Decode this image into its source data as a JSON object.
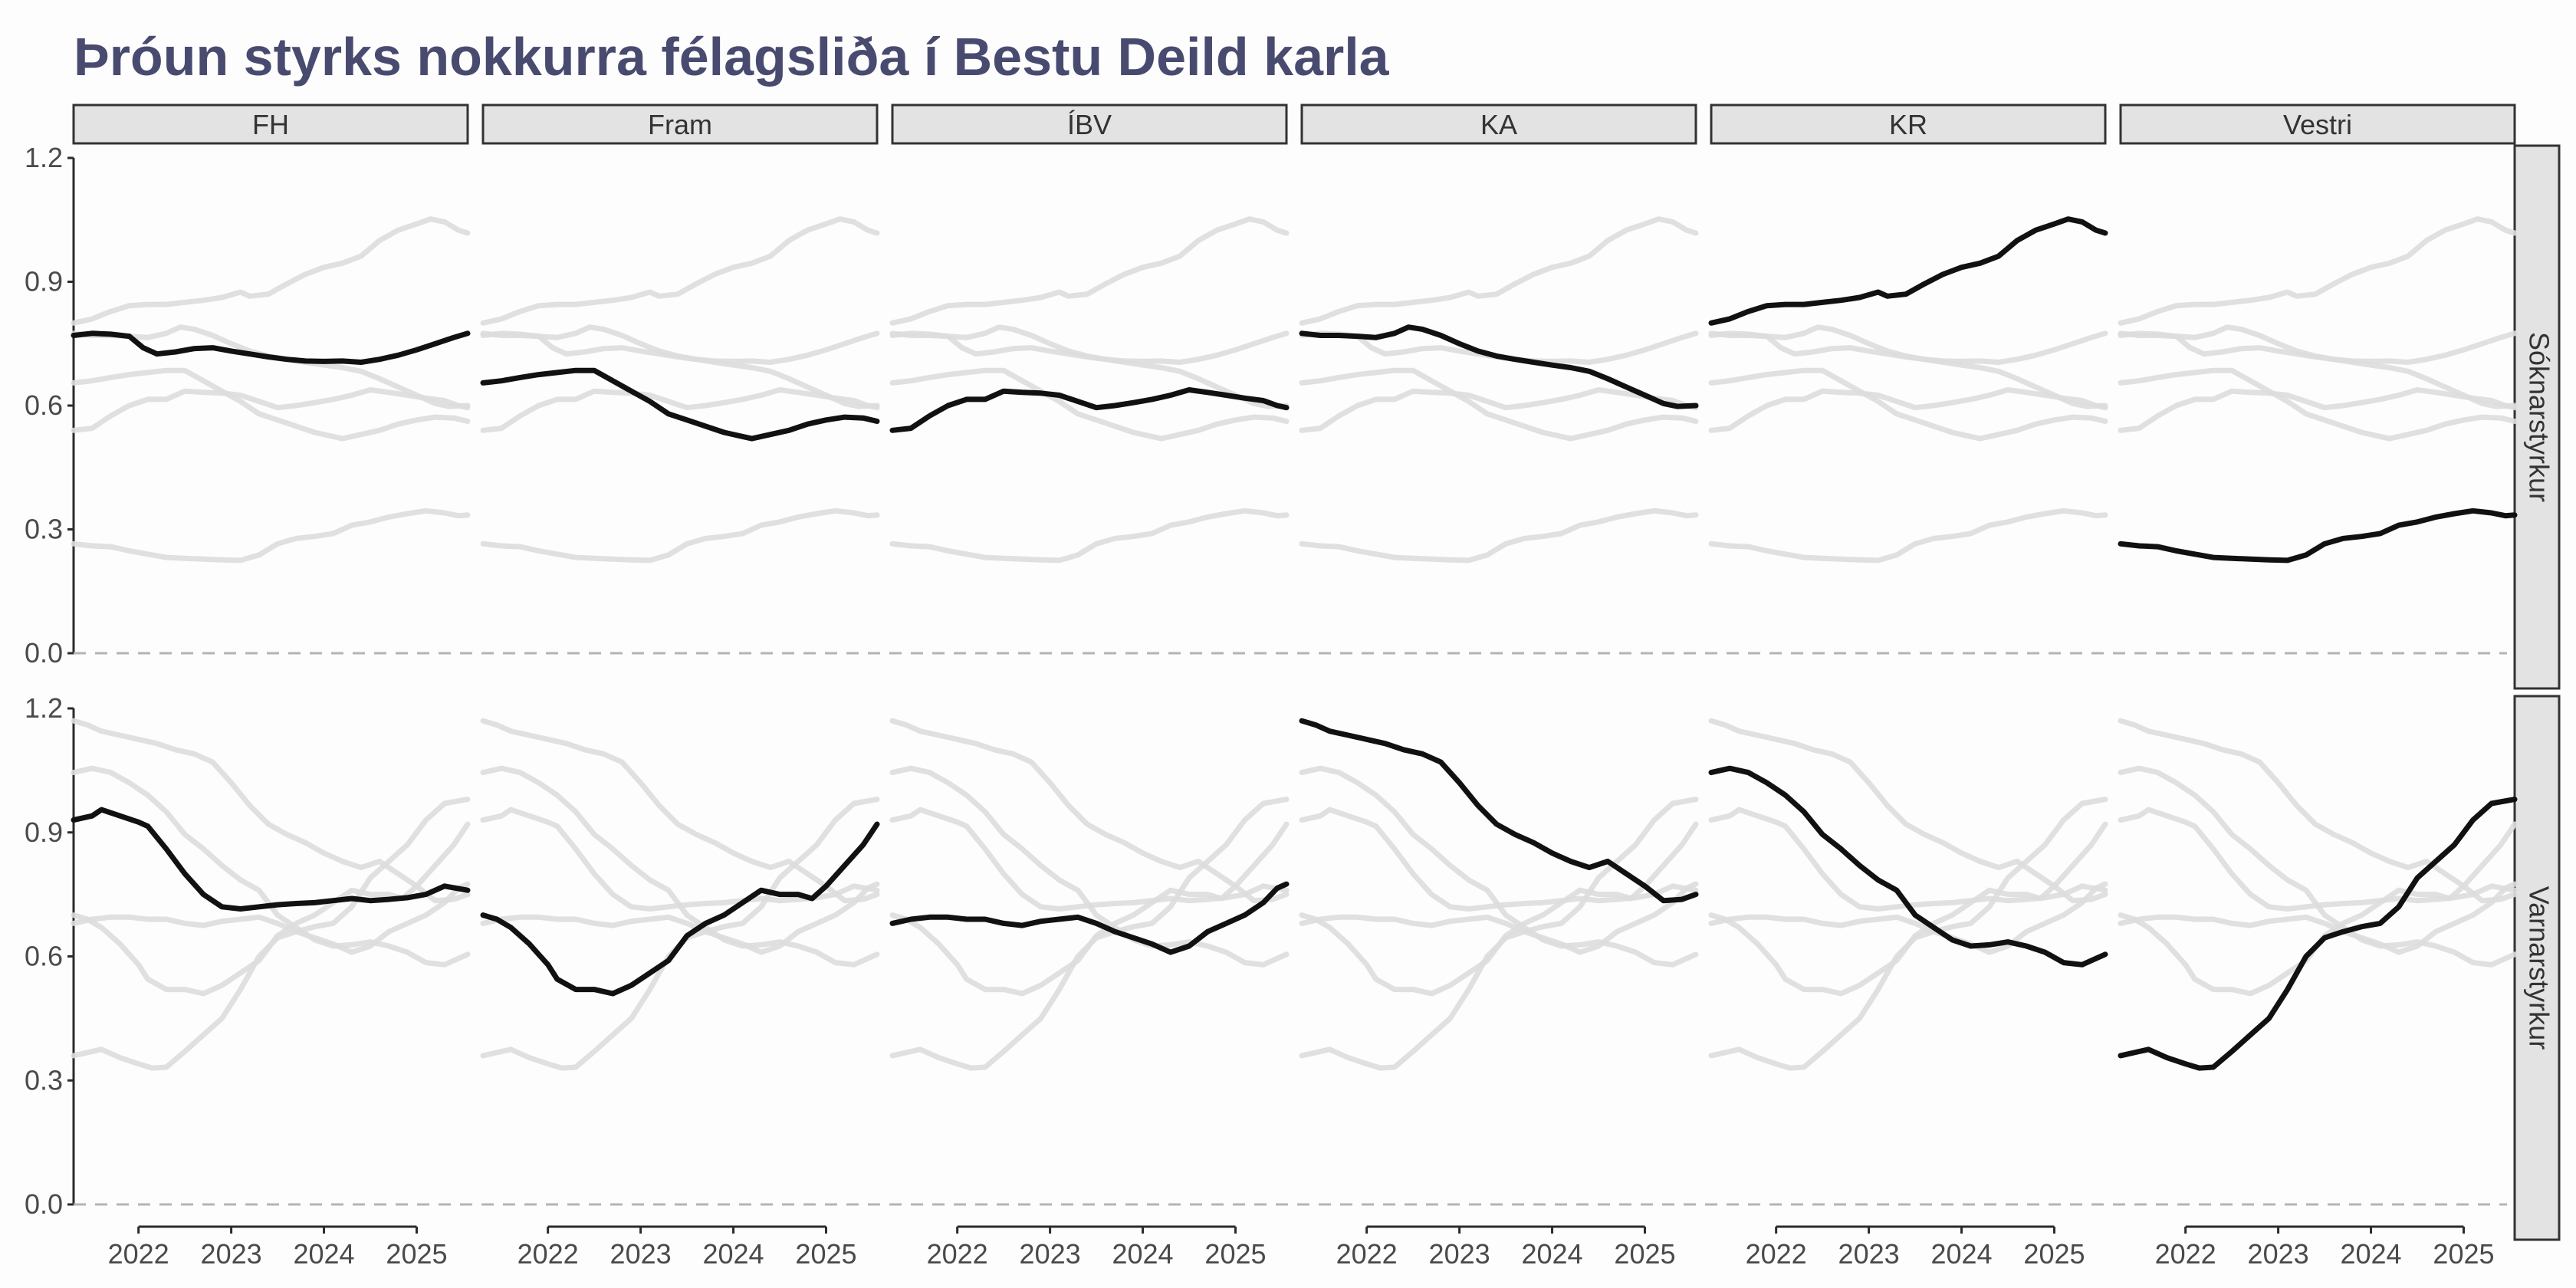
{
  "chart_data": {
    "type": "line",
    "title": "Þróun styrks nokkurra félagsliða í Bestu Deild karla",
    "xlabel": "",
    "ylabel": "",
    "facet_columns": [
      "FH",
      "Fram",
      "ÍBV",
      "KA",
      "KR",
      "Vestri"
    ],
    "facet_rows": [
      "Sóknarstyrkur",
      "Varnarstyrkur"
    ],
    "x_ticks": [
      "2022",
      "2023",
      "2024",
      "2025"
    ],
    "y_ticks": [
      "0.0",
      "0.3",
      "0.6",
      "0.9",
      "1.2"
    ],
    "ylim": [
      0,
      1.2
    ],
    "xlim": [
      2021.3,
      2025.55
    ],
    "grid": false,
    "highlight_color": "#111111",
    "background_series_color": "#dddddd",
    "title_color": "#484b6f",
    "series": [
      {
        "name": "FH",
        "attack": [
          [
            2021.3,
            0.77
          ],
          [
            2021.5,
            0.775
          ],
          [
            2021.7,
            0.773
          ],
          [
            2021.9,
            0.768
          ],
          [
            2022.05,
            0.74
          ],
          [
            2022.2,
            0.725
          ],
          [
            2022.4,
            0.73
          ],
          [
            2022.6,
            0.738
          ],
          [
            2022.8,
            0.74
          ],
          [
            2023.0,
            0.732
          ],
          [
            2023.2,
            0.725
          ],
          [
            2023.4,
            0.718
          ],
          [
            2023.6,
            0.712
          ],
          [
            2023.8,
            0.708
          ],
          [
            2024.0,
            0.707
          ],
          [
            2024.2,
            0.708
          ],
          [
            2024.4,
            0.705
          ],
          [
            2024.6,
            0.712
          ],
          [
            2024.8,
            0.722
          ],
          [
            2025.0,
            0.735
          ],
          [
            2025.2,
            0.75
          ],
          [
            2025.4,
            0.765
          ],
          [
            2025.55,
            0.775
          ]
        ],
        "defense": [
          [
            2021.3,
            0.93
          ],
          [
            2021.5,
            0.94
          ],
          [
            2021.6,
            0.955
          ],
          [
            2021.8,
            0.94
          ],
          [
            2022.0,
            0.925
          ],
          [
            2022.1,
            0.915
          ],
          [
            2022.3,
            0.86
          ],
          [
            2022.5,
            0.8
          ],
          [
            2022.7,
            0.75
          ],
          [
            2022.9,
            0.72
          ],
          [
            2023.1,
            0.715
          ],
          [
            2023.3,
            0.72
          ],
          [
            2023.5,
            0.725
          ],
          [
            2023.7,
            0.728
          ],
          [
            2023.9,
            0.73
          ],
          [
            2024.1,
            0.735
          ],
          [
            2024.3,
            0.74
          ],
          [
            2024.5,
            0.735
          ],
          [
            2024.7,
            0.738
          ],
          [
            2024.9,
            0.742
          ],
          [
            2025.1,
            0.75
          ],
          [
            2025.3,
            0.77
          ],
          [
            2025.55,
            0.76
          ]
        ]
      },
      {
        "name": "Fram",
        "attack": [
          [
            2021.3,
            0.655
          ],
          [
            2021.5,
            0.66
          ],
          [
            2021.7,
            0.668
          ],
          [
            2021.9,
            0.675
          ],
          [
            2022.1,
            0.68
          ],
          [
            2022.3,
            0.685
          ],
          [
            2022.5,
            0.685
          ],
          [
            2022.7,
            0.66
          ],
          [
            2022.9,
            0.635
          ],
          [
            2023.1,
            0.61
          ],
          [
            2023.3,
            0.58
          ],
          [
            2023.5,
            0.565
          ],
          [
            2023.7,
            0.55
          ],
          [
            2023.9,
            0.535
          ],
          [
            2024.1,
            0.525
          ],
          [
            2024.2,
            0.52
          ],
          [
            2024.4,
            0.53
          ],
          [
            2024.6,
            0.54
          ],
          [
            2024.8,
            0.555
          ],
          [
            2025.0,
            0.565
          ],
          [
            2025.2,
            0.572
          ],
          [
            2025.4,
            0.57
          ],
          [
            2025.55,
            0.562
          ]
        ],
        "defense": [
          [
            2021.3,
            0.7
          ],
          [
            2021.45,
            0.69
          ],
          [
            2021.6,
            0.67
          ],
          [
            2021.8,
            0.63
          ],
          [
            2022.0,
            0.58
          ],
          [
            2022.1,
            0.545
          ],
          [
            2022.3,
            0.52
          ],
          [
            2022.5,
            0.52
          ],
          [
            2022.7,
            0.51
          ],
          [
            2022.9,
            0.53
          ],
          [
            2023.1,
            0.56
          ],
          [
            2023.3,
            0.59
          ],
          [
            2023.5,
            0.65
          ],
          [
            2023.7,
            0.68
          ],
          [
            2023.9,
            0.7
          ],
          [
            2024.1,
            0.73
          ],
          [
            2024.3,
            0.76
          ],
          [
            2024.5,
            0.75
          ],
          [
            2024.7,
            0.75
          ],
          [
            2024.85,
            0.74
          ],
          [
            2025.0,
            0.77
          ],
          [
            2025.2,
            0.82
          ],
          [
            2025.4,
            0.87
          ],
          [
            2025.55,
            0.92
          ]
        ]
      },
      {
        "name": "ÍBV",
        "attack": [
          [
            2021.3,
            0.54
          ],
          [
            2021.5,
            0.545
          ],
          [
            2021.7,
            0.575
          ],
          [
            2021.9,
            0.6
          ],
          [
            2022.1,
            0.615
          ],
          [
            2022.3,
            0.615
          ],
          [
            2022.5,
            0.635
          ],
          [
            2022.7,
            0.632
          ],
          [
            2022.9,
            0.63
          ],
          [
            2023.1,
            0.625
          ],
          [
            2023.3,
            0.61
          ],
          [
            2023.5,
            0.595
          ],
          [
            2023.7,
            0.6
          ],
          [
            2023.9,
            0.607
          ],
          [
            2024.1,
            0.615
          ],
          [
            2024.3,
            0.625
          ],
          [
            2024.5,
            0.638
          ],
          [
            2024.7,
            0.632
          ],
          [
            2024.9,
            0.625
          ],
          [
            2025.1,
            0.618
          ],
          [
            2025.3,
            0.612
          ],
          [
            2025.45,
            0.6
          ],
          [
            2025.55,
            0.595
          ]
        ],
        "defense": [
          [
            2021.3,
            0.68
          ],
          [
            2021.5,
            0.69
          ],
          [
            2021.7,
            0.695
          ],
          [
            2021.9,
            0.695
          ],
          [
            2022.1,
            0.69
          ],
          [
            2022.3,
            0.69
          ],
          [
            2022.5,
            0.68
          ],
          [
            2022.7,
            0.675
          ],
          [
            2022.9,
            0.685
          ],
          [
            2023.1,
            0.69
          ],
          [
            2023.3,
            0.695
          ],
          [
            2023.5,
            0.68
          ],
          [
            2023.7,
            0.66
          ],
          [
            2023.9,
            0.645
          ],
          [
            2024.1,
            0.63
          ],
          [
            2024.3,
            0.61
          ],
          [
            2024.5,
            0.625
          ],
          [
            2024.7,
            0.66
          ],
          [
            2024.9,
            0.68
          ],
          [
            2025.1,
            0.7
          ],
          [
            2025.3,
            0.73
          ],
          [
            2025.45,
            0.765
          ],
          [
            2025.55,
            0.775
          ]
        ]
      },
      {
        "name": "KA",
        "attack": [
          [
            2021.3,
            0.775
          ],
          [
            2021.5,
            0.77
          ],
          [
            2021.7,
            0.77
          ],
          [
            2021.9,
            0.768
          ],
          [
            2022.1,
            0.765
          ],
          [
            2022.3,
            0.775
          ],
          [
            2022.45,
            0.79
          ],
          [
            2022.6,
            0.785
          ],
          [
            2022.8,
            0.77
          ],
          [
            2023.0,
            0.75
          ],
          [
            2023.2,
            0.732
          ],
          [
            2023.4,
            0.72
          ],
          [
            2023.6,
            0.712
          ],
          [
            2023.8,
            0.705
          ],
          [
            2024.0,
            0.698
          ],
          [
            2024.2,
            0.692
          ],
          [
            2024.4,
            0.683
          ],
          [
            2024.6,
            0.665
          ],
          [
            2024.8,
            0.645
          ],
          [
            2025.0,
            0.625
          ],
          [
            2025.2,
            0.605
          ],
          [
            2025.35,
            0.598
          ],
          [
            2025.55,
            0.6
          ]
        ],
        "defense": [
          [
            2021.3,
            1.17
          ],
          [
            2021.45,
            1.16
          ],
          [
            2021.6,
            1.145
          ],
          [
            2021.8,
            1.135
          ],
          [
            2022.0,
            1.125
          ],
          [
            2022.2,
            1.115
          ],
          [
            2022.4,
            1.1
          ],
          [
            2022.6,
            1.09
          ],
          [
            2022.8,
            1.07
          ],
          [
            2023.0,
            1.02
          ],
          [
            2023.2,
            0.965
          ],
          [
            2023.4,
            0.92
          ],
          [
            2023.6,
            0.895
          ],
          [
            2023.8,
            0.875
          ],
          [
            2024.0,
            0.85
          ],
          [
            2024.2,
            0.83
          ],
          [
            2024.4,
            0.815
          ],
          [
            2024.6,
            0.83
          ],
          [
            2024.8,
            0.8
          ],
          [
            2025.0,
            0.77
          ],
          [
            2025.2,
            0.735
          ],
          [
            2025.4,
            0.738
          ],
          [
            2025.55,
            0.75
          ]
        ]
      },
      {
        "name": "KR",
        "attack": [
          [
            2021.3,
            0.8
          ],
          [
            2021.5,
            0.81
          ],
          [
            2021.7,
            0.828
          ],
          [
            2021.9,
            0.842
          ],
          [
            2022.1,
            0.845
          ],
          [
            2022.3,
            0.845
          ],
          [
            2022.5,
            0.85
          ],
          [
            2022.7,
            0.855
          ],
          [
            2022.9,
            0.862
          ],
          [
            2023.1,
            0.875
          ],
          [
            2023.2,
            0.865
          ],
          [
            2023.4,
            0.87
          ],
          [
            2023.6,
            0.895
          ],
          [
            2023.8,
            0.918
          ],
          [
            2024.0,
            0.935
          ],
          [
            2024.2,
            0.945
          ],
          [
            2024.4,
            0.962
          ],
          [
            2024.6,
            1.0
          ],
          [
            2024.8,
            1.025
          ],
          [
            2025.0,
            1.04
          ],
          [
            2025.15,
            1.052
          ],
          [
            2025.3,
            1.045
          ],
          [
            2025.45,
            1.025
          ],
          [
            2025.55,
            1.018
          ]
        ],
        "defense": [
          [
            2021.3,
            1.045
          ],
          [
            2021.5,
            1.055
          ],
          [
            2021.7,
            1.045
          ],
          [
            2021.9,
            1.02
          ],
          [
            2022.1,
            0.99
          ],
          [
            2022.3,
            0.95
          ],
          [
            2022.5,
            0.895
          ],
          [
            2022.7,
            0.86
          ],
          [
            2022.9,
            0.82
          ],
          [
            2023.1,
            0.785
          ],
          [
            2023.3,
            0.76
          ],
          [
            2023.5,
            0.7
          ],
          [
            2023.7,
            0.67
          ],
          [
            2023.9,
            0.64
          ],
          [
            2024.1,
            0.625
          ],
          [
            2024.3,
            0.628
          ],
          [
            2024.5,
            0.635
          ],
          [
            2024.7,
            0.625
          ],
          [
            2024.9,
            0.61
          ],
          [
            2025.1,
            0.585
          ],
          [
            2025.3,
            0.58
          ],
          [
            2025.45,
            0.595
          ],
          [
            2025.55,
            0.605
          ]
        ]
      },
      {
        "name": "Vestri",
        "attack": [
          [
            2021.3,
            0.265
          ],
          [
            2021.5,
            0.26
          ],
          [
            2021.7,
            0.258
          ],
          [
            2021.9,
            0.248
          ],
          [
            2022.1,
            0.24
          ],
          [
            2022.3,
            0.232
          ],
          [
            2022.5,
            0.23
          ],
          [
            2022.7,
            0.228
          ],
          [
            2022.9,
            0.226
          ],
          [
            2023.1,
            0.225
          ],
          [
            2023.3,
            0.238
          ],
          [
            2023.5,
            0.265
          ],
          [
            2023.7,
            0.278
          ],
          [
            2023.9,
            0.283
          ],
          [
            2024.1,
            0.29
          ],
          [
            2024.3,
            0.31
          ],
          [
            2024.5,
            0.318
          ],
          [
            2024.7,
            0.33
          ],
          [
            2024.9,
            0.338
          ],
          [
            2025.1,
            0.345
          ],
          [
            2025.3,
            0.34
          ],
          [
            2025.45,
            0.333
          ],
          [
            2025.55,
            0.335
          ]
        ],
        "defense": [
          [
            2021.3,
            0.36
          ],
          [
            2021.5,
            0.37
          ],
          [
            2021.6,
            0.375
          ],
          [
            2021.8,
            0.355
          ],
          [
            2022.0,
            0.34
          ],
          [
            2022.15,
            0.33
          ],
          [
            2022.3,
            0.332
          ],
          [
            2022.5,
            0.37
          ],
          [
            2022.7,
            0.41
          ],
          [
            2022.9,
            0.45
          ],
          [
            2023.1,
            0.52
          ],
          [
            2023.3,
            0.6
          ],
          [
            2023.5,
            0.645
          ],
          [
            2023.7,
            0.66
          ],
          [
            2023.9,
            0.672
          ],
          [
            2024.1,
            0.68
          ],
          [
            2024.3,
            0.72
          ],
          [
            2024.5,
            0.79
          ],
          [
            2024.7,
            0.83
          ],
          [
            2024.9,
            0.87
          ],
          [
            2025.1,
            0.93
          ],
          [
            2025.3,
            0.97
          ],
          [
            2025.55,
            0.98
          ]
        ]
      }
    ]
  }
}
